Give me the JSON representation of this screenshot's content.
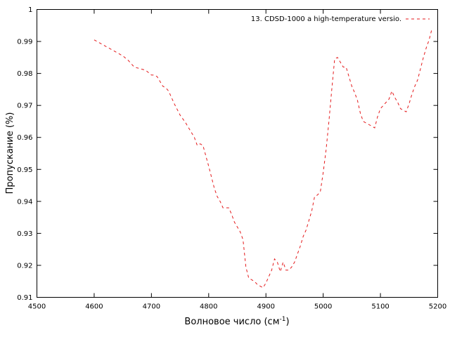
{
  "chart_data": {
    "type": "line",
    "xlabel": "Волновое число (см",
    "xlabel_sup": "-1",
    "xlabel_suffix": ")",
    "ylabel": "Пропускание (%)",
    "xlim": [
      4500,
      5200
    ],
    "ylim": [
      0.91,
      1.0
    ],
    "xticks": [
      4500,
      4600,
      4700,
      4800,
      4900,
      5000,
      5100,
      5200
    ],
    "yticks": [
      0.91,
      0.92,
      0.93,
      0.94,
      0.95,
      0.96,
      0.97,
      0.98,
      0.99,
      1
    ],
    "ytick_labels": [
      "0.91",
      "0.92",
      "0.93",
      "0.94",
      "0.95",
      "0.96",
      "0.97",
      "0.98",
      "0.99",
      "1"
    ],
    "legend_position": "top-right",
    "series": [
      {
        "name": "13.  CDSD-1000 a high-temperature versio.",
        "color": "#e41a1c",
        "dash": "dashed",
        "x": [
          4600,
          4610,
          4620,
          4630,
          4640,
          4650,
          4660,
          4670,
          4680,
          4690,
          4700,
          4705,
          4710,
          4715,
          4720,
          4725,
          4730,
          4740,
          4750,
          4760,
          4770,
          4775,
          4780,
          4785,
          4790,
          4800,
          4805,
          4810,
          4815,
          4820,
          4825,
          4830,
          4835,
          4840,
          4845,
          4850,
          4855,
          4860,
          4865,
          4870,
          4875,
          4880,
          4885,
          4890,
          4895,
          4900,
          4905,
          4910,
          4915,
          4920,
          4925,
          4930,
          4935,
          4940,
          4945,
          4950,
          4955,
          4960,
          4965,
          4970,
          4975,
          4980,
          4985,
          4990,
          4995,
          5000,
          5005,
          5010,
          5015,
          5020,
          5025,
          5030,
          5035,
          5040,
          5045,
          5050,
          5055,
          5060,
          5065,
          5070,
          5075,
          5080,
          5085,
          5090,
          5095,
          5100,
          5105,
          5110,
          5115,
          5120,
          5125,
          5130,
          5135,
          5140,
          5145,
          5150,
          5155,
          5160,
          5165,
          5170,
          5175,
          5180,
          5185,
          5190
        ],
        "values": [
          0.9905,
          0.9895,
          0.9885,
          0.9875,
          0.9865,
          0.9855,
          0.984,
          0.982,
          0.9815,
          0.981,
          0.9795,
          0.9795,
          0.979,
          0.9775,
          0.976,
          0.9755,
          0.9745,
          0.9705,
          0.967,
          0.9645,
          0.9615,
          0.96,
          0.9575,
          0.958,
          0.9575,
          0.951,
          0.9475,
          0.944,
          0.9415,
          0.94,
          0.938,
          0.938,
          0.938,
          0.936,
          0.9335,
          0.932,
          0.9305,
          0.928,
          0.9195,
          0.916,
          0.9155,
          0.915,
          0.914,
          0.9135,
          0.913,
          0.9145,
          0.9165,
          0.9185,
          0.922,
          0.921,
          0.918,
          0.921,
          0.9185,
          0.9185,
          0.9195,
          0.921,
          0.9235,
          0.926,
          0.929,
          0.931,
          0.934,
          0.937,
          0.9415,
          0.942,
          0.943,
          0.949,
          0.956,
          0.965,
          0.975,
          0.9845,
          0.985,
          0.9835,
          0.982,
          0.982,
          0.979,
          0.976,
          0.974,
          0.9715,
          0.9675,
          0.965,
          0.9645,
          0.964,
          0.9635,
          0.963,
          0.9665,
          0.969,
          0.97,
          0.971,
          0.972,
          0.9745,
          0.9725,
          0.971,
          0.969,
          0.9685,
          0.968,
          0.9705,
          0.9735,
          0.976,
          0.978,
          0.9815,
          0.985,
          0.988,
          0.9905,
          0.994
        ]
      }
    ]
  }
}
